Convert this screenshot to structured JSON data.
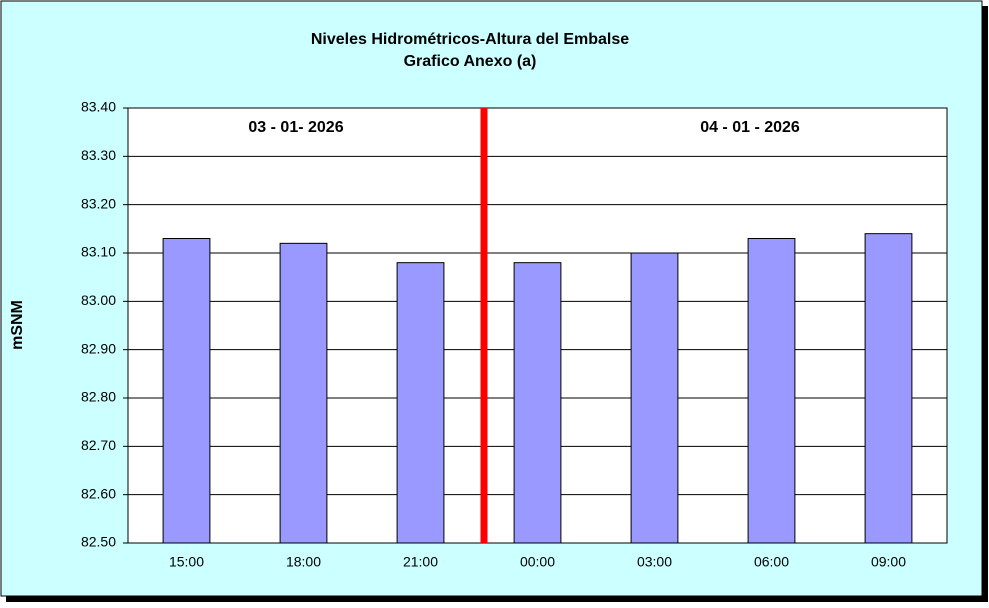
{
  "chart_data": {
    "type": "bar",
    "title": "Niveles Hidrométricos-Altura del Embalse",
    "subtitle": "Grafico Anexo (a)",
    "y_label": "mSNM",
    "annotations": [
      "03 - 01- 2026",
      "04 - 01 - 2026"
    ],
    "categories": [
      "15:00",
      "18:00",
      "21:00",
      "00:00",
      "03:00",
      "06:00",
      "09:00"
    ],
    "values": [
      83.13,
      83.12,
      83.08,
      83.08,
      83.1,
      83.13,
      83.14
    ],
    "color": "#9999ff",
    "ylim": [
      82.5,
      83.4
    ],
    "yticks": [
      {
        "value": 82.5,
        "label": "82.50"
      },
      {
        "value": 82.6,
        "label": "82.60"
      },
      {
        "value": 82.7,
        "label": "82.70"
      },
      {
        "value": 82.8,
        "label": "82.80"
      },
      {
        "value": 82.9,
        "label": "82.90"
      },
      {
        "value": 83.0,
        "label": "83.00"
      },
      {
        "value": 83.1,
        "label": "83.10"
      },
      {
        "value": 83.2,
        "label": "83.20"
      },
      {
        "value": 83.3,
        "label": "83.30"
      },
      {
        "value": 83.4,
        "label": "83.40"
      }
    ],
    "grid": true
  }
}
